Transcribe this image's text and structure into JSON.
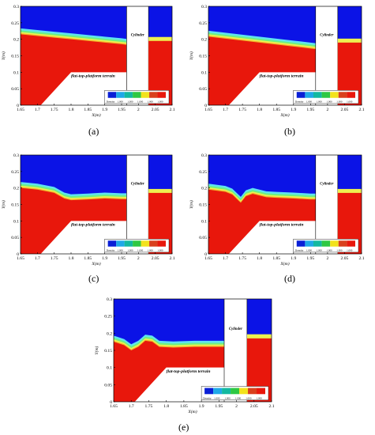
{
  "figure": {
    "panels": [
      {
        "id": "a",
        "label": "(a)"
      },
      {
        "id": "b",
        "label": "(b)"
      },
      {
        "id": "c",
        "label": "(c)"
      },
      {
        "id": "d",
        "label": "(d)"
      },
      {
        "id": "e",
        "label": "(e)"
      }
    ],
    "x_ticks": [
      "1.65",
      "1.7",
      "1.75",
      "1.8",
      "1.85",
      "1.9",
      "1.95",
      "2",
      "2.05",
      "2.1"
    ],
    "y_ticks": [
      "0",
      "0.05",
      "0.1",
      "0.15",
      "0.2",
      "0.25",
      "0.3"
    ],
    "xlabel": "X(m)",
    "ylabel": "Y(m)",
    "terrain_label": "flat-top-platform terrain",
    "cylinder_label": "Cylinder",
    "legend": {
      "title": "Density",
      "values": [
        "1.000",
        "1.000",
        "1.000",
        "1.000",
        "1.000"
      ],
      "colors": [
        "#0a1fd6",
        "#1fa8e8",
        "#13b9a0",
        "#2ec843",
        "#f2e21c",
        "#d9401d",
        "#e8180c"
      ]
    },
    "colors": {
      "water": "#e8170c",
      "air": "#0b13e6"
    }
  }
}
